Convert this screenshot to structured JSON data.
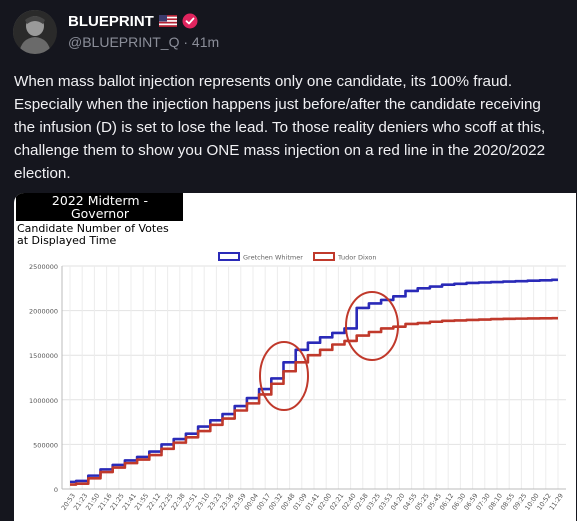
{
  "author": {
    "display_name": "BLUEPRINT",
    "handle": "@BLUEPRINT_Q",
    "time_ago": "41m",
    "flag_icon": "us-flag-icon",
    "badge_icon": "verified-badge-icon",
    "badge_color": "#e0245e"
  },
  "post": {
    "text": "When mass ballot injection represents only one candidate, its 100% fraud. Especially when the injection happens just before/after the candidate receiving the infusion (D) is set to lose the lead. To those reality deniers who scoff at this, challenge them to show you ONE mass injection on a red line in the 2020/2022 election."
  },
  "media": {
    "caption_line1": "2022 Midterm -",
    "caption_line2": "Governor",
    "subtitle_line1": "Candidate Number of Votes",
    "subtitle_line2": "at Displayed Time"
  },
  "chart_data": {
    "type": "line",
    "ylim": [
      0,
      2500000
    ],
    "yticks": [
      "0",
      "500000",
      "1000000",
      "1500000",
      "2000000",
      "2500000"
    ],
    "xticks": [
      "20:53",
      "21:23",
      "21:50",
      "21:16",
      "21:25",
      "21:41",
      "21:55",
      "22:12",
      "22:25",
      "22:38",
      "22:51",
      "23:10",
      "23:23",
      "23:36",
      "23:59",
      "00:04",
      "00:17",
      "00:32",
      "00:48",
      "01:09",
      "01:41",
      "02:00",
      "02:21",
      "02:40",
      "02:58",
      "03:25",
      "03:53",
      "04:20",
      "04:55",
      "05:25",
      "05:45",
      "06:12",
      "06:30",
      "06:59",
      "07:30",
      "08:10",
      "08:55",
      "09:25",
      "10:00",
      "10:52",
      "11:29"
    ],
    "legend_position": "top",
    "grid": true,
    "series": [
      {
        "name": "Gretchen Whitmer",
        "color": "#2a2ab8",
        "values": [
          80000,
          90000,
          150000,
          220000,
          270000,
          320000,
          360000,
          420000,
          500000,
          560000,
          620000,
          700000,
          770000,
          840000,
          930000,
          1020000,
          1120000,
          1240000,
          1420000,
          1560000,
          1640000,
          1700000,
          1750000,
          1800000,
          2030000,
          2080000,
          2120000,
          2160000,
          2220000,
          2250000,
          2270000,
          2290000,
          2300000,
          2310000,
          2315000,
          2320000,
          2325000,
          2330000,
          2335000,
          2340000,
          2345000
        ]
      },
      {
        "name": "Tudor Dixon",
        "color": "#c0392b",
        "values": [
          50000,
          60000,
          120000,
          190000,
          240000,
          290000,
          330000,
          380000,
          450000,
          520000,
          580000,
          650000,
          720000,
          790000,
          880000,
          960000,
          1060000,
          1180000,
          1320000,
          1420000,
          1500000,
          1560000,
          1620000,
          1660000,
          1720000,
          1760000,
          1800000,
          1820000,
          1850000,
          1860000,
          1875000,
          1885000,
          1890000,
          1895000,
          1900000,
          1905000,
          1908000,
          1910000,
          1912000,
          1913000,
          1915000
        ]
      }
    ],
    "annotation_color": "#c0392b"
  }
}
